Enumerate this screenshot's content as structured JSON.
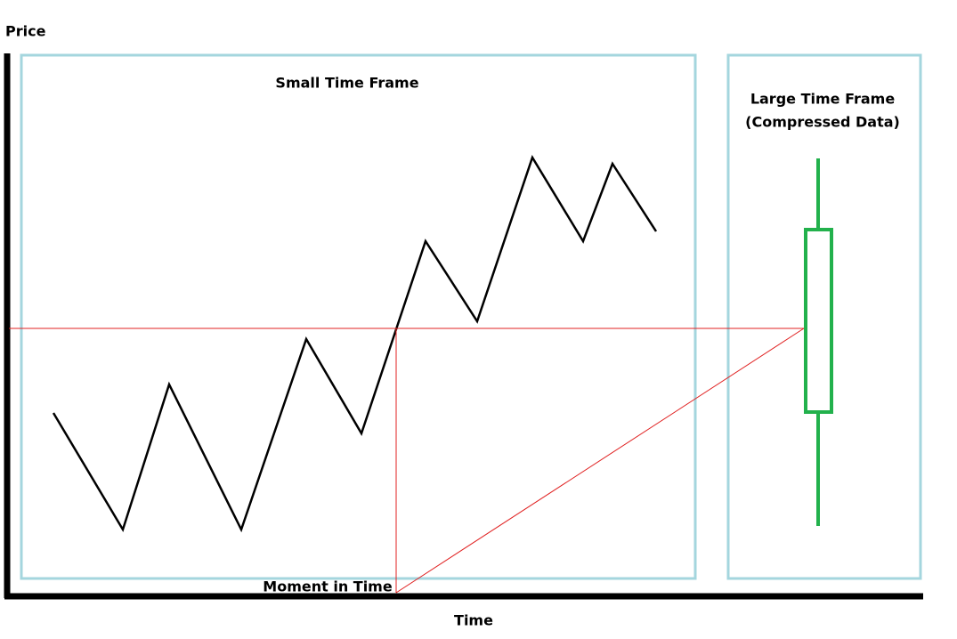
{
  "axes": {
    "y_label": "Price",
    "x_label": "Time"
  },
  "panels": {
    "small": {
      "title": "Small Time Frame"
    },
    "large": {
      "title_lines": [
        "Large Time Frame",
        "(Compressed Data)"
      ]
    }
  },
  "annotations": {
    "moment": "Moment in Time"
  }
}
